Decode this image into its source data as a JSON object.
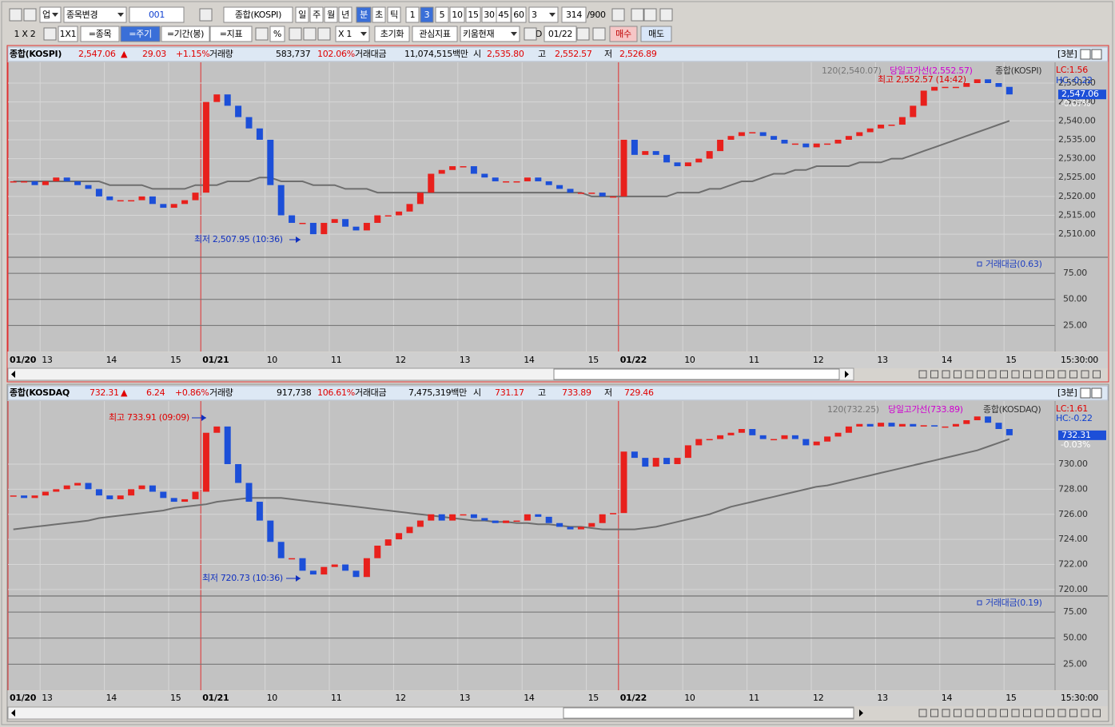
{
  "toolbar": {
    "row1": [
      "업",
      "종목변경",
      "001",
      "종합(KOSPI)",
      "일",
      "주",
      "월",
      "년",
      "분",
      "초",
      "틱",
      "1",
      "3",
      "5",
      "10",
      "15",
      "30",
      "45",
      "60",
      "3",
      "314",
      "/900"
    ],
    "row2": [
      "1 X 2",
      "1X1",
      "=종목",
      "=주기",
      "=기간(봉)",
      "=지표",
      "%",
      "X 1",
      "초기화",
      "관심지표",
      "키움현재",
      "D",
      "01/22",
      "매수",
      "매도"
    ]
  },
  "panels": [
    {
      "header": [
        "종합(KOSPI)",
        "2,547.06",
        "▲",
        "29.03",
        "+1.15%",
        "거래량",
        "583,737",
        "102.06%",
        "거래대금",
        "11,074,515백만",
        "시",
        "2,535.80",
        "고",
        "2,552.57",
        "저",
        "2,526.89",
        "[3분]"
      ]
    },
    {
      "header": [
        "종합(KOSDAQ",
        "732.31",
        "▲",
        "6.24",
        "+0.86%",
        "거래량",
        "917,738",
        "106.61%",
        "거래대금",
        "7,475,319백만",
        "시",
        "731.17",
        "고",
        "733.89",
        "저",
        "729.46",
        "[3분]"
      ]
    }
  ],
  "chart_data": [
    {
      "type": "candlestick",
      "categories": [
        "01/20",
        null,
        null,
        "13",
        null,
        null,
        null,
        null,
        null,
        "14",
        null,
        null,
        null,
        null,
        null,
        "15",
        null,
        null,
        "01/21",
        null,
        null,
        null,
        null,
        null,
        "10",
        null,
        null,
        null,
        null,
        null,
        "11",
        null,
        null,
        null,
        null,
        null,
        "12",
        null,
        null,
        null,
        null,
        null,
        "13",
        null,
        null,
        null,
        null,
        null,
        "14",
        null,
        null,
        null,
        null,
        null,
        "15",
        null,
        null,
        "01/22",
        null,
        null,
        null,
        null,
        null,
        "10",
        null,
        null,
        null,
        null,
        null,
        "11",
        null,
        null,
        null,
        null,
        null,
        "12",
        null,
        null,
        null,
        null,
        null,
        "13",
        null,
        null,
        null,
        null,
        null,
        "14",
        null,
        null,
        null,
        null,
        null,
        "15"
      ],
      "series": [
        {
          "name": "종합(KOSPI)",
          "up_color": "#e8201c",
          "down_color": "#1c4fd8",
          "values": [
            2524,
            2524,
            2523,
            2524,
            2525,
            2524,
            2523,
            2522,
            2520,
            2519,
            2519,
            2519,
            2520,
            2518,
            2517,
            2518,
            2519,
            2521,
            2545,
            2547,
            2544,
            2541,
            2538,
            2535,
            2523,
            2515,
            2513,
            2513,
            2510,
            2513,
            2514,
            2512,
            2511,
            2513,
            2515,
            2515,
            2516,
            2518,
            2521,
            2526,
            2527,
            2528,
            2528,
            2526,
            2525,
            2524,
            2524,
            2524,
            2525,
            2524,
            2523,
            2522,
            2521,
            2521,
            2521,
            2520,
            2520,
            2535,
            2531,
            2532,
            2531,
            2529,
            2528,
            2529,
            2530,
            2532,
            2535,
            2536,
            2537,
            2537,
            2536,
            2535,
            2534,
            2534,
            2533,
            2534,
            2534,
            2535,
            2536,
            2537,
            2538,
            2539,
            2539,
            2541,
            2544,
            2548,
            2549,
            2549,
            2549,
            2550,
            2551,
            2550,
            2549,
            2547
          ]
        },
        {
          "name": "120(2,540.07)",
          "color": "#6e6e6e",
          "values": [
            2524,
            2524,
            2524,
            2524,
            2524,
            2524,
            2524,
            2524,
            2524,
            2523,
            2523,
            2523,
            2523,
            2522,
            2522,
            2522,
            2522,
            2523,
            2523,
            2523,
            2524,
            2524,
            2524,
            2525,
            2525,
            2524,
            2524,
            2524,
            2523,
            2523,
            2523,
            2522,
            2522,
            2522,
            2521,
            2521,
            2521,
            2521,
            2521,
            2521,
            2521,
            2521,
            2521,
            2521,
            2521,
            2521,
            2521,
            2521,
            2521,
            2521,
            2521,
            2521,
            2521,
            2521,
            2520,
            2520,
            2520,
            2520,
            2520,
            2520,
            2520,
            2520,
            2521,
            2521,
            2521,
            2522,
            2522,
            2523,
            2524,
            2524,
            2525,
            2526,
            2526,
            2527,
            2527,
            2528,
            2528,
            2528,
            2528,
            2529,
            2529,
            2529,
            2530,
            2530,
            2531,
            2532,
            2533,
            2534,
            2535,
            2536,
            2537,
            2538,
            2539,
            2540
          ]
        }
      ],
      "ylim": [
        2503.9,
        2555.5
      ],
      "yticks": [
        {
          "value": 2510,
          "label": "2,510.00"
        },
        {
          "value": 2515,
          "label": "2,515.00"
        },
        {
          "value": 2520,
          "label": "2,520.00"
        },
        {
          "value": 2525,
          "label": "2,525.00"
        },
        {
          "value": 2530,
          "label": "2,530.00"
        },
        {
          "value": 2535,
          "label": "2,535.00"
        },
        {
          "value": 2540,
          "label": "2,540.00"
        },
        {
          "value": 2545,
          "label": "2,545.00"
        },
        {
          "value": 2550,
          "label": "2,550.00"
        }
      ],
      "grid": true,
      "annotations": {
        "high_line": "당일고가선(2,552.57)",
        "lc": "LC:1.56",
        "hc": "HC:-0.22",
        "max": "최고 2,552.57 (14:42)",
        "min": "최저 2,507.95 (10:36)",
        "last_price": "2,547.06",
        "last_change": "-0.07%"
      },
      "sub": {
        "title": "거래대금(0.63)",
        "ylim": [
          0,
          90.4
        ],
        "yticks": [
          {
            "value": 25,
            "label": "25.00"
          },
          {
            "value": 50,
            "label": "50.00"
          },
          {
            "value": 75,
            "label": "75.00"
          }
        ]
      },
      "corner_time": "15:30:00"
    },
    {
      "type": "candlestick",
      "categories": [
        "01/20",
        null,
        null,
        "13",
        null,
        null,
        null,
        null,
        null,
        "14",
        null,
        null,
        null,
        null,
        null,
        "15",
        null,
        null,
        "01/21",
        null,
        null,
        null,
        null,
        null,
        "10",
        null,
        null,
        null,
        null,
        null,
        "11",
        null,
        null,
        null,
        null,
        null,
        "12",
        null,
        null,
        null,
        null,
        null,
        "13",
        null,
        null,
        null,
        null,
        null,
        "14",
        null,
        null,
        null,
        null,
        null,
        "15",
        null,
        null,
        "01/22",
        null,
        null,
        null,
        null,
        null,
        "10",
        null,
        null,
        null,
        null,
        null,
        "11",
        null,
        null,
        null,
        null,
        null,
        "12",
        null,
        null,
        null,
        null,
        null,
        "13",
        null,
        null,
        null,
        null,
        null,
        "14",
        null,
        null,
        null,
        null,
        null,
        "15"
      ],
      "series": [
        {
          "name": "종합(KOSDAQ)",
          "up_color": "#e8201c",
          "down_color": "#1c4fd8",
          "values": [
            727.5,
            727.3,
            727.5,
            727.8,
            728,
            728.3,
            728.5,
            728,
            727.5,
            727.2,
            727.5,
            728,
            728.3,
            727.8,
            727.3,
            727,
            727.2,
            727.8,
            732.5,
            733,
            730,
            728.5,
            727,
            725.5,
            723.8,
            722.5,
            722.5,
            721.5,
            721.2,
            721.8,
            722,
            721.5,
            721,
            722.5,
            723.5,
            724,
            724.5,
            725,
            725.5,
            726,
            725.5,
            726,
            726,
            725.7,
            725.5,
            725.3,
            725.5,
            725.5,
            726,
            725.8,
            725.3,
            725,
            724.8,
            725,
            725.3,
            726,
            726.1,
            731,
            730.5,
            729.8,
            730.5,
            730,
            730.5,
            731.5,
            732,
            732,
            732.3,
            732.5,
            732.8,
            732.3,
            732,
            732,
            732.3,
            732,
            731.5,
            731.8,
            732.2,
            732.5,
            733,
            733.2,
            733,
            733.3,
            733,
            733.2,
            733,
            733.1,
            733,
            733,
            733.2,
            733.5,
            733.8,
            733.3,
            732.8,
            732.3
          ]
        },
        {
          "name": "120(732.25)",
          "color": "#6e6e6e",
          "values": [
            724.8,
            724.9,
            725,
            725.1,
            725.2,
            725.3,
            725.4,
            725.5,
            725.7,
            725.8,
            725.9,
            726,
            726.1,
            726.2,
            726.3,
            726.5,
            726.6,
            726.7,
            726.8,
            727,
            727.1,
            727.2,
            727.3,
            727.3,
            727.3,
            727.3,
            727.2,
            727.1,
            727,
            726.9,
            726.8,
            726.7,
            726.6,
            726.5,
            726.4,
            726.3,
            726.2,
            726.1,
            726,
            725.9,
            725.8,
            725.7,
            725.6,
            725.5,
            725.5,
            725.4,
            725.4,
            725.3,
            725.3,
            725.2,
            725.2,
            725.1,
            725,
            725,
            724.9,
            724.8,
            724.8,
            724.8,
            724.8,
            724.9,
            725,
            725.2,
            725.4,
            725.6,
            725.8,
            726,
            726.3,
            726.6,
            726.8,
            727,
            727.2,
            727.4,
            727.6,
            727.8,
            728,
            728.2,
            728.3,
            728.5,
            728.7,
            728.9,
            729.1,
            729.3,
            729.5,
            729.7,
            729.9,
            730.1,
            730.3,
            730.5,
            730.7,
            730.9,
            731.1,
            731.4,
            731.7,
            732
          ]
        }
      ],
      "ylim": [
        719.55,
        735.03
      ],
      "yticks": [
        {
          "value": 720,
          "label": "720.00"
        },
        {
          "value": 722,
          "label": "722.00"
        },
        {
          "value": 724,
          "label": "724.00"
        },
        {
          "value": 726,
          "label": "726.00"
        },
        {
          "value": 728,
          "label": "728.00"
        },
        {
          "value": 730,
          "label": "730.00"
        }
      ],
      "grid": true,
      "annotations": {
        "high_line": "당일고가선(733.89)",
        "lc": "LC:1.61",
        "hc": "HC:-0.22",
        "max": "최고 733.91 (09:09)",
        "min": "최저 720.73 (10:36)",
        "last_price": "732.31",
        "last_change": "-0.03%"
      },
      "sub": {
        "title": "거래대금(0.19)",
        "ylim": [
          0,
          90.4
        ],
        "yticks": [
          {
            "value": 25,
            "label": "25.00"
          },
          {
            "value": 50,
            "label": "50.00"
          },
          {
            "value": 75,
            "label": "75.00"
          }
        ]
      },
      "corner_time": "15:30:00"
    }
  ]
}
